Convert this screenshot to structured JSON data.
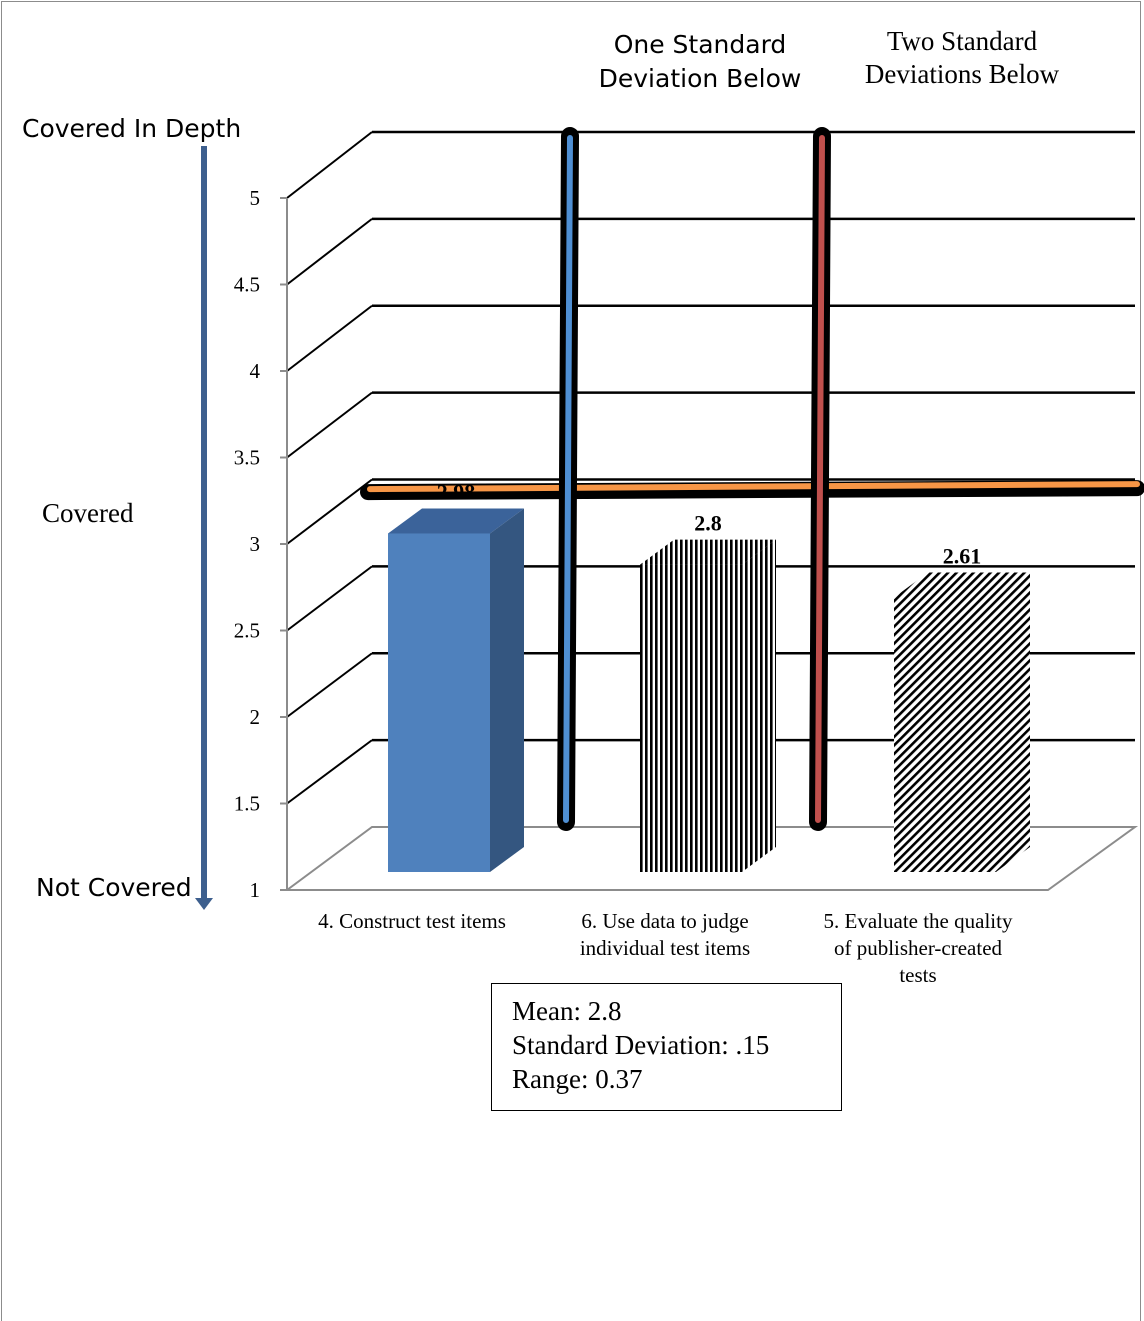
{
  "chart_data": {
    "type": "bar",
    "categories": [
      "4. Construct test items",
      "6. Use data to judge individual test items",
      "5. Evaluate the quality of publisher-created tests"
    ],
    "category_lines": [
      [
        "4. Construct test items"
      ],
      [
        "6. Use data to judge",
        "individual test items"
      ],
      [
        "5. Evaluate the quality",
        "of publisher-created",
        "tests"
      ]
    ],
    "values": [
      2.98,
      2.8,
      2.61
    ],
    "data_labels": [
      "2.98",
      "2.8",
      "2.61"
    ],
    "bar_fills": [
      "solid-blue",
      "vertical-stripes",
      "diagonal-stripes"
    ],
    "ylim": [
      1,
      5
    ],
    "yticks": [
      "1",
      "1.5",
      "2",
      "2.5",
      "3",
      "3.5",
      "4",
      "4.5",
      "5"
    ],
    "grid": true,
    "reference_lines": [
      {
        "label": "One Standard Deviation Below",
        "label_lines": [
          "One Standard",
          "Deviation Below"
        ],
        "orientation": "vertical",
        "color": "#4f8fd3"
      },
      {
        "label": "Two Standard Deviations Below",
        "label_lines": [
          "Two Standard",
          "Deviations Below"
        ],
        "orientation": "vertical",
        "color": "#c0504d"
      },
      {
        "label": "Mean",
        "orientation": "horizontal",
        "value": 3.3,
        "color": "#f79646"
      }
    ]
  },
  "scale_labels": {
    "top": "Covered In Depth",
    "middle": "Covered",
    "bottom": "Not Covered"
  },
  "stats_box": {
    "mean": "Mean:  2.8",
    "sd": "Standard Deviation: .15",
    "range": "Range:  0.37"
  },
  "colors": {
    "bar1_front": "#4f81bd",
    "bar1_side": "#345680",
    "bar1_top": "#3b639a",
    "arrow": "#3d5f8e",
    "axis": "#8c8c8c"
  }
}
